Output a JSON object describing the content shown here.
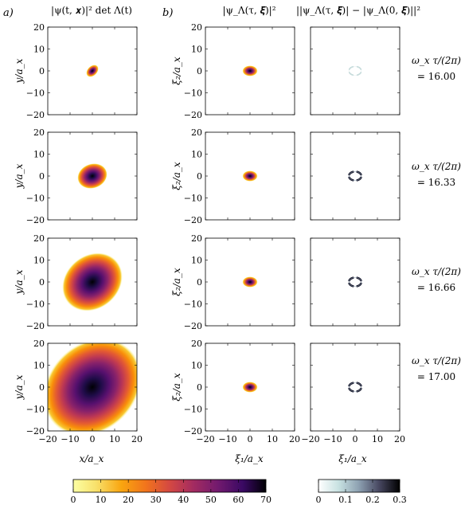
{
  "panel_labels": {
    "a": "a)",
    "b": "b)"
  },
  "column_titles": [
    "|ψ(t, 𝒙)|² det Λ(t)",
    "|ψ_Λ(τ, 𝝃)|²",
    "||ψ_Λ(τ, 𝝃)| − |ψ_Λ(0, 𝝃)||²"
  ],
  "row_labels": [
    {
      "line1": "ω_x τ/(2π)",
      "line2": "= 16.00"
    },
    {
      "line1": "ω_x τ/(2π)",
      "line2": "= 16.33"
    },
    {
      "line1": "ω_x τ/(2π)",
      "line2": "= 16.66"
    },
    {
      "line1": "ω_x τ/(2π)",
      "line2": "= 17.00"
    }
  ],
  "axis_labels": {
    "col1_y": "y/a_x",
    "col2_y": "ξ₂/a_x",
    "col1_x": "x/a_x",
    "col2_x": "ξ₁/a_x",
    "col3_x": "ξ₁/a_x"
  },
  "ticks": {
    "y": [
      "20",
      "10",
      "0",
      "−10",
      "−20"
    ],
    "x": [
      "−20",
      "−10",
      "0",
      "10",
      "20"
    ]
  },
  "colorbars": [
    {
      "name": "inferno",
      "ticks": [
        "0",
        "10",
        "20",
        "30",
        "40",
        "50",
        "60",
        "70"
      ]
    },
    {
      "name": "bone",
      "ticks": [
        "0",
        "0.1",
        "0.2",
        "0.3"
      ]
    }
  ],
  "chart_data": {
    "type": "heatmap",
    "grid": [
      4,
      3
    ],
    "xlim": [
      -20,
      20
    ],
    "ylim": [
      -20,
      20
    ],
    "rows_time": [
      16.0,
      16.33,
      16.66,
      17.0
    ],
    "colormaps": [
      "inferno",
      "inferno",
      "bone"
    ],
    "color_ranges": [
      [
        0,
        70
      ],
      [
        0,
        70
      ],
      [
        0,
        0.3
      ]
    ]
  },
  "colors": {
    "inferno": [
      "#fcffa4",
      "#f8c931",
      "#f98e09",
      "#e35933",
      "#bc3754",
      "#89226a",
      "#57106e",
      "#1f0c48",
      "#000004"
    ],
    "bone": [
      "#ffffff",
      "#c7e1e1",
      "#96b0b0",
      "#6b7b99",
      "#3a3a5a",
      "#000000"
    ]
  }
}
